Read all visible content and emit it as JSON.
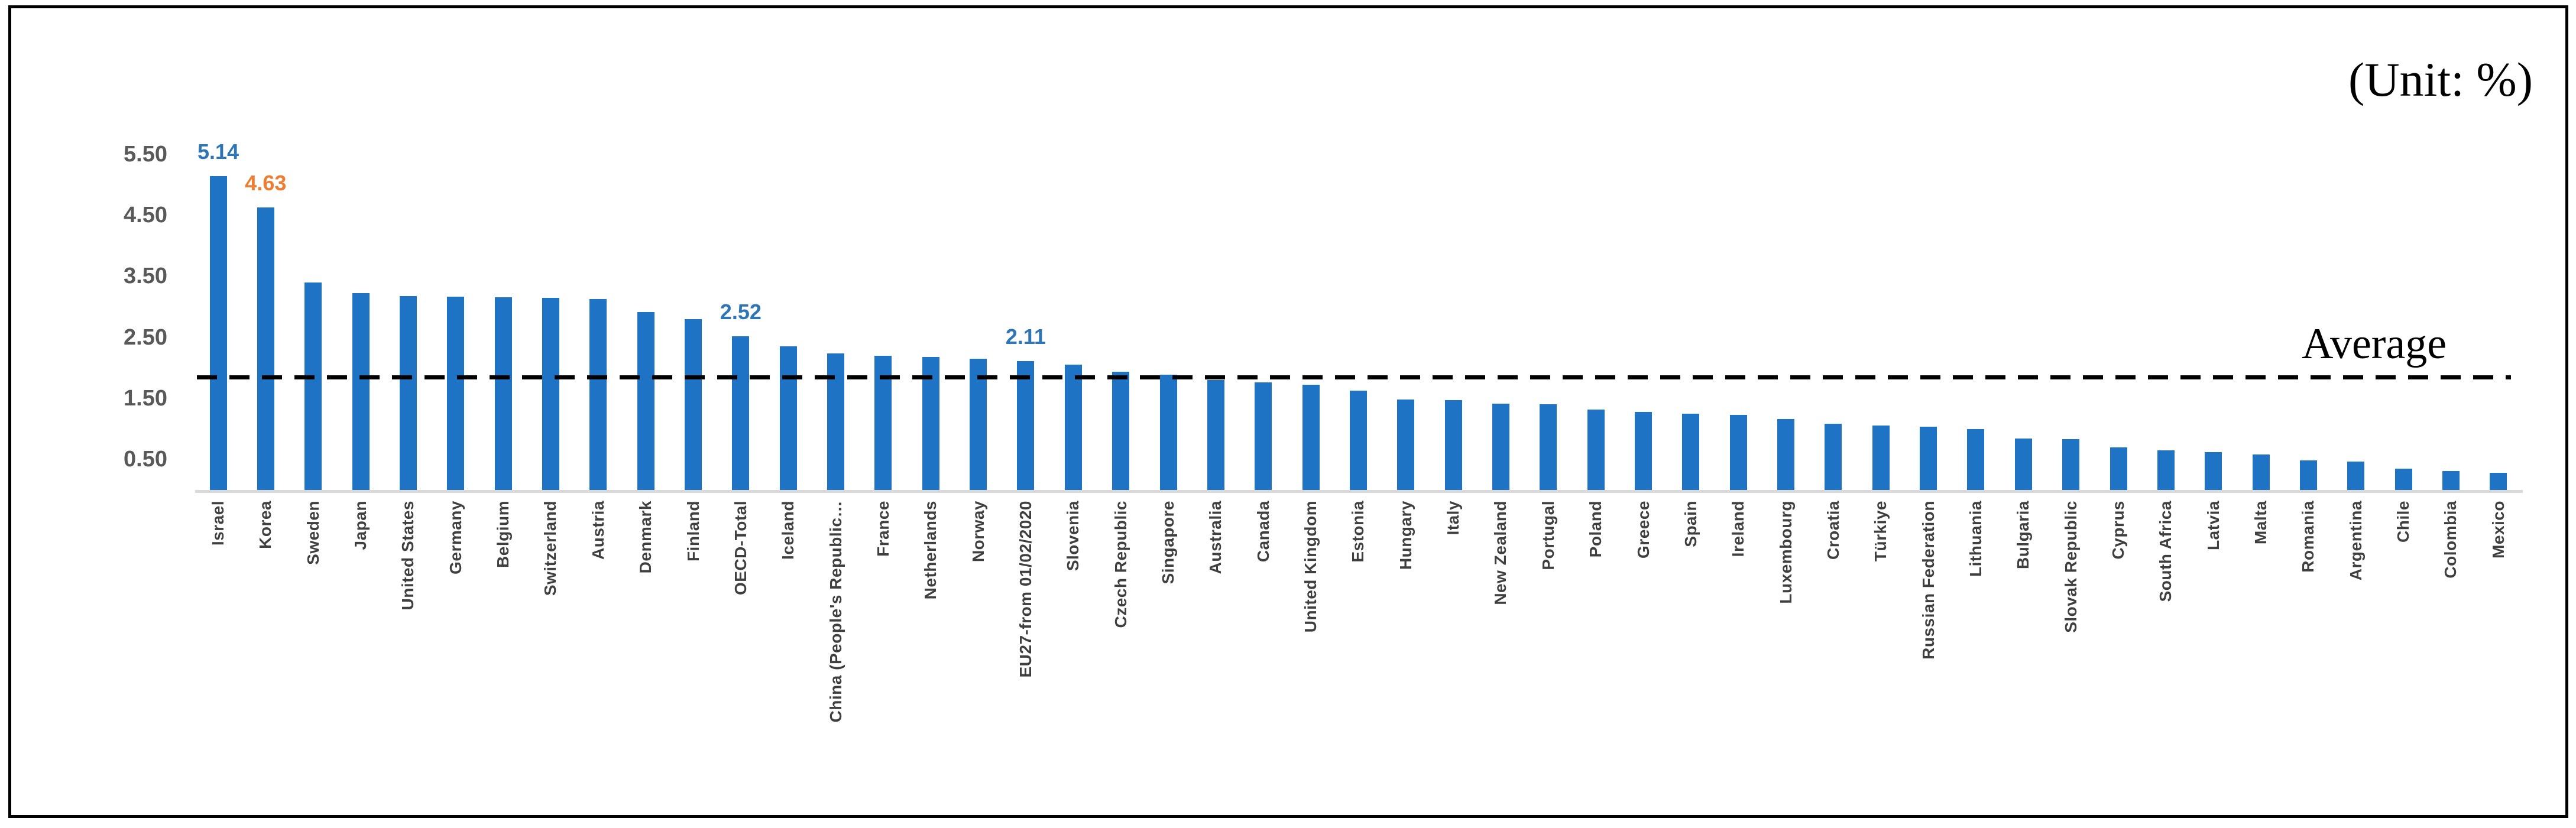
{
  "page": {
    "unit_label": "(Unit: %)"
  },
  "chart_data": {
    "type": "bar",
    "title": "",
    "xlabel": "",
    "ylabel": "",
    "unit": "%",
    "grid": false,
    "legend": false,
    "ylim": [
      0,
      5.67
    ],
    "yticks": [
      "0.50",
      "1.50",
      "2.50",
      "3.50",
      "4.50",
      "5.50"
    ],
    "categories": [
      "Israel",
      "Korea",
      "Sweden",
      "Japan",
      "United States",
      "Germany",
      "Belgium",
      "Switzerland",
      "Austria",
      "Denmark",
      "Finland",
      "OECD-Total",
      "Iceland",
      "China (People's Republic…",
      "France",
      "Netherlands",
      "Norway",
      "EU27-from 01/02/2020",
      "Slovenia",
      "Czech Republic",
      "Singapore",
      "Australia",
      "Canada",
      "United Kingdom",
      "Estonia",
      "Hungary",
      "Italy",
      "New Zealand",
      "Portugal",
      "Poland",
      "Greece",
      "Spain",
      "Ireland",
      "Luxembourg",
      "Croatia",
      "Türkiye",
      "Russian Federation",
      "Lithuania",
      "Bulgaria",
      "Slovak Republic",
      "Cyprus",
      "South Africa",
      "Latvia",
      "Malta",
      "Romania",
      "Argentina",
      "Chile",
      "Colombia",
      "Mexico"
    ],
    "values": [
      5.14,
      4.63,
      3.4,
      3.22,
      3.18,
      3.17,
      3.16,
      3.15,
      3.13,
      2.91,
      2.8,
      2.52,
      2.35,
      2.24,
      2.2,
      2.18,
      2.15,
      2.11,
      2.05,
      1.94,
      1.89,
      1.8,
      1.76,
      1.72,
      1.63,
      1.48,
      1.47,
      1.41,
      1.4,
      1.32,
      1.28,
      1.25,
      1.23,
      1.16,
      1.08,
      1.06,
      1.04,
      1.0,
      0.84,
      0.83,
      0.7,
      0.65,
      0.62,
      0.58,
      0.48,
      0.46,
      0.35,
      0.31,
      0.28
    ],
    "bar_color": "#1e73c4",
    "axis_tick_color": "#595959",
    "category_label_color": "#3f3f3f",
    "data_labels": [
      {
        "category": "Israel",
        "text": "5.14",
        "color": "#2e75b6"
      },
      {
        "category": "Korea",
        "text": "4.63",
        "color": "#ed7d31"
      },
      {
        "category": "OECD-Total",
        "text": "2.52",
        "color": "#2e75b6"
      },
      {
        "category": "EU27-from 01/02/2020",
        "text": "2.11",
        "color": "#2e75b6"
      }
    ],
    "average_line": {
      "label": "Average",
      "value": 1.85,
      "style": "dashed",
      "color": "#000000"
    }
  }
}
